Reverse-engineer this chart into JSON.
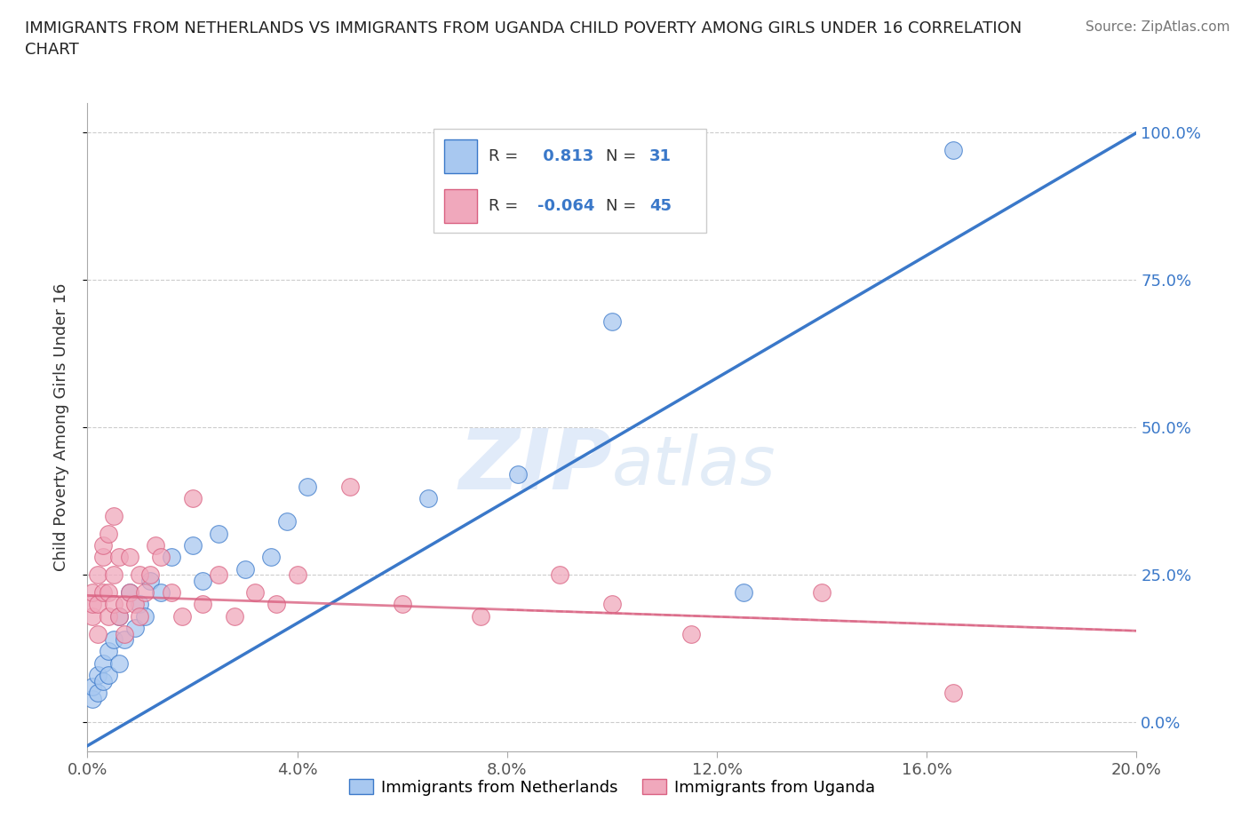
{
  "title": "IMMIGRANTS FROM NETHERLANDS VS IMMIGRANTS FROM UGANDA CHILD POVERTY AMONG GIRLS UNDER 16 CORRELATION\nCHART",
  "source_text": "Source: ZipAtlas.com",
  "ylabel": "Child Poverty Among Girls Under 16",
  "xlim": [
    0.0,
    0.2
  ],
  "ylim": [
    -0.05,
    1.05
  ],
  "xticks": [
    0.0,
    0.04,
    0.08,
    0.12,
    0.16,
    0.2
  ],
  "yticks": [
    0.0,
    0.25,
    0.5,
    0.75,
    1.0
  ],
  "ytick_labels": [
    "0.0%",
    "25.0%",
    "50.0%",
    "75.0%",
    "100.0%"
  ],
  "xtick_labels": [
    "0.0%",
    "4.0%",
    "8.0%",
    "12.0%",
    "16.0%",
    "20.0%"
  ],
  "color_netherlands": "#a8c8f0",
  "color_uganda": "#f0a8bc",
  "line_color_netherlands": "#3a78c9",
  "line_color_uganda": "#d96080",
  "R_netherlands": 0.813,
  "N_netherlands": 31,
  "R_uganda": -0.064,
  "N_uganda": 45,
  "watermark_zip": "ZIP",
  "watermark_atlas": "atlas",
  "legend_label_netherlands": "Immigrants from Netherlands",
  "legend_label_uganda": "Immigrants from Uganda",
  "nl_line_x0": 0.0,
  "nl_line_y0": -0.04,
  "nl_line_x1": 0.2,
  "nl_line_y1": 1.0,
  "ug_line_x0": 0.0,
  "ug_line_y0": 0.215,
  "ug_line_x1": 0.2,
  "ug_line_y1": 0.155,
  "netherlands_x": [
    0.001,
    0.001,
    0.002,
    0.002,
    0.003,
    0.003,
    0.004,
    0.004,
    0.005,
    0.006,
    0.006,
    0.007,
    0.008,
    0.009,
    0.01,
    0.011,
    0.012,
    0.014,
    0.016,
    0.02,
    0.022,
    0.025,
    0.03,
    0.035,
    0.038,
    0.042,
    0.065,
    0.082,
    0.1,
    0.125,
    0.165
  ],
  "netherlands_y": [
    0.04,
    0.06,
    0.08,
    0.05,
    0.1,
    0.07,
    0.12,
    0.08,
    0.14,
    0.1,
    0.18,
    0.14,
    0.22,
    0.16,
    0.2,
    0.18,
    0.24,
    0.22,
    0.28,
    0.3,
    0.24,
    0.32,
    0.26,
    0.28,
    0.34,
    0.4,
    0.38,
    0.42,
    0.68,
    0.22,
    0.97
  ],
  "uganda_x": [
    0.001,
    0.001,
    0.001,
    0.002,
    0.002,
    0.002,
    0.003,
    0.003,
    0.003,
    0.004,
    0.004,
    0.004,
    0.005,
    0.005,
    0.005,
    0.006,
    0.006,
    0.007,
    0.007,
    0.008,
    0.008,
    0.009,
    0.01,
    0.01,
    0.011,
    0.012,
    0.013,
    0.014,
    0.016,
    0.018,
    0.02,
    0.022,
    0.025,
    0.028,
    0.032,
    0.036,
    0.04,
    0.05,
    0.06,
    0.075,
    0.09,
    0.1,
    0.115,
    0.14,
    0.165
  ],
  "uganda_y": [
    0.18,
    0.2,
    0.22,
    0.15,
    0.2,
    0.25,
    0.22,
    0.28,
    0.3,
    0.18,
    0.22,
    0.32,
    0.25,
    0.2,
    0.35,
    0.18,
    0.28,
    0.2,
    0.15,
    0.22,
    0.28,
    0.2,
    0.25,
    0.18,
    0.22,
    0.25,
    0.3,
    0.28,
    0.22,
    0.18,
    0.38,
    0.2,
    0.25,
    0.18,
    0.22,
    0.2,
    0.25,
    0.4,
    0.2,
    0.18,
    0.25,
    0.2,
    0.15,
    0.22,
    0.05
  ]
}
